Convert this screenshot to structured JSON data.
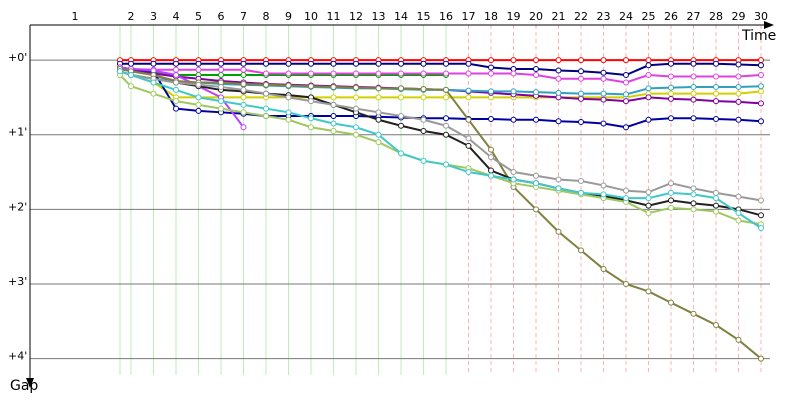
{
  "chart_data": {
    "type": "line",
    "x_label": "Time",
    "y_label": "Gap",
    "categories": [
      "1",
      "2",
      "3",
      "4",
      "5",
      "6",
      "7",
      "8",
      "9",
      "10",
      "11",
      "12",
      "13",
      "14",
      "15",
      "16",
      "17",
      "18",
      "19",
      "20",
      "21",
      "22",
      "23",
      "24",
      "25",
      "26",
      "27",
      "28",
      "29",
      "30"
    ],
    "ylim": [
      -0.47,
      4.22
    ],
    "yticks": [
      {
        "value": 0,
        "label": "+0'"
      },
      {
        "value": 1,
        "label": "+1'"
      },
      {
        "value": 2,
        "label": "+2'"
      },
      {
        "value": 3,
        "label": "+3'"
      },
      {
        "value": 4,
        "label": "+4'"
      }
    ],
    "grid": true,
    "series": [
      {
        "color": "#ff0000",
        "values": [
          0,
          0,
          0,
          0,
          0,
          0,
          0,
          0,
          0,
          0,
          0,
          0,
          0,
          0,
          0,
          0,
          0,
          0,
          0,
          0,
          0,
          0,
          0,
          0,
          0,
          0,
          0,
          0,
          0,
          0
        ]
      },
      {
        "color": "#000080",
        "values": [
          0.05,
          0.05,
          0.05,
          0.05,
          0.05,
          0.05,
          0.05,
          0.05,
          0.05,
          0.05,
          0.05,
          0.05,
          0.05,
          0.05,
          0.05,
          0.05,
          0.05,
          0.1,
          0.12,
          0.12,
          0.14,
          0.15,
          0.17,
          0.2,
          0.07,
          0.05,
          0.05,
          0.05,
          0.06,
          0.07
        ]
      },
      {
        "color": "#00a000",
        "values": [
          0.1,
          0.12,
          0.15,
          0.2,
          0.2,
          0.2,
          0.2,
          0.2,
          0.2,
          0.2,
          0.2,
          0.2,
          0.2,
          0.2,
          0.2,
          0.2,
          null,
          null,
          null,
          null,
          null,
          null,
          null,
          null,
          null,
          null,
          null,
          null,
          null,
          null
        ]
      },
      {
        "color": "#e040e0",
        "values": [
          0.1,
          0.12,
          0.13,
          0.13,
          0.13,
          0.13,
          0.13,
          0.18,
          0.18,
          0.18,
          0.18,
          0.18,
          0.18,
          0.18,
          0.18,
          0.18,
          0.18,
          0.18,
          0.18,
          0.2,
          0.25,
          0.25,
          0.25,
          0.3,
          0.2,
          0.22,
          0.22,
          0.22,
          0.22,
          0.2
        ]
      },
      {
        "color": "#d0d000",
        "values": [
          0.15,
          0.2,
          0.3,
          0.5,
          0.5,
          0.5,
          0.5,
          0.5,
          0.5,
          0.5,
          0.5,
          0.5,
          0.5,
          0.5,
          0.5,
          0.5,
          0.5,
          0.5,
          0.5,
          0.5,
          0.5,
          0.5,
          0.5,
          0.5,
          0.45,
          0.45,
          0.45,
          0.45,
          0.45,
          0.42
        ]
      },
      {
        "color": "#8000a0",
        "values": [
          0.12,
          0.14,
          0.18,
          0.22,
          0.25,
          0.28,
          0.3,
          0.32,
          0.33,
          0.34,
          0.35,
          0.36,
          0.37,
          0.38,
          0.39,
          0.4,
          0.42,
          0.44,
          0.46,
          0.48,
          0.5,
          0.52,
          0.53,
          0.55,
          0.5,
          0.52,
          0.53,
          0.55,
          0.56,
          0.58
        ]
      },
      {
        "color": "#30a0c0",
        "values": [
          0.12,
          0.15,
          0.2,
          0.3,
          0.3,
          0.32,
          0.33,
          0.34,
          0.35,
          0.36,
          0.37,
          0.38,
          0.38,
          0.39,
          0.4,
          0.4,
          0.41,
          0.42,
          0.42,
          0.43,
          0.44,
          0.45,
          0.45,
          0.46,
          0.38,
          0.37,
          0.36,
          0.36,
          0.36,
          0.35
        ]
      },
      {
        "color": "#0000a0",
        "values": [
          0.1,
          0.12,
          0.15,
          0.65,
          0.68,
          0.7,
          0.72,
          0.75,
          0.75,
          0.75,
          0.75,
          0.75,
          0.76,
          0.77,
          0.78,
          0.78,
          0.79,
          0.79,
          0.8,
          0.8,
          0.82,
          0.83,
          0.85,
          0.9,
          0.8,
          0.78,
          0.78,
          0.79,
          0.8,
          0.82
        ]
      },
      {
        "color": "#c040ff",
        "values": [
          0.1,
          0.12,
          0.14,
          0.2,
          0.35,
          0.5,
          0.9,
          null,
          null,
          null,
          null,
          null,
          null,
          null,
          null,
          null,
          null,
          null,
          null,
          null,
          null,
          null,
          null,
          null,
          null,
          null,
          null,
          null,
          null,
          null
        ]
      },
      {
        "color": "#808040",
        "values": [
          0.12,
          0.15,
          0.2,
          0.28,
          0.3,
          0.3,
          0.32,
          0.33,
          0.34,
          0.35,
          0.36,
          0.37,
          0.38,
          0.38,
          0.39,
          0.4,
          0.8,
          1.2,
          1.7,
          2.0,
          2.3,
          2.55,
          2.8,
          3.0,
          3.1,
          3.25,
          3.4,
          3.55,
          3.75,
          4.0
        ]
      },
      {
        "color": "#202020",
        "values": [
          0.15,
          0.2,
          0.25,
          0.3,
          0.35,
          0.4,
          0.42,
          0.45,
          0.47,
          0.5,
          0.6,
          0.7,
          0.8,
          0.88,
          0.95,
          1.0,
          1.15,
          1.48,
          1.6,
          1.65,
          1.72,
          1.78,
          1.82,
          1.88,
          1.95,
          1.88,
          1.92,
          1.95,
          2.0,
          2.08
        ]
      },
      {
        "color": "#999999",
        "values": [
          0.15,
          0.2,
          0.25,
          0.3,
          0.33,
          0.36,
          0.4,
          0.45,
          0.5,
          0.55,
          0.6,
          0.65,
          0.7,
          0.75,
          0.8,
          0.88,
          1.05,
          1.3,
          1.5,
          1.55,
          1.6,
          1.62,
          1.68,
          1.75,
          1.77,
          1.65,
          1.72,
          1.78,
          1.83,
          1.88
        ]
      },
      {
        "color": "#a0c860",
        "values": [
          0.2,
          0.35,
          0.45,
          0.55,
          0.6,
          0.65,
          0.7,
          0.75,
          0.8,
          0.9,
          0.95,
          1.0,
          1.1,
          1.25,
          1.35,
          1.4,
          1.45,
          1.55,
          1.65,
          1.7,
          1.75,
          1.8,
          1.85,
          1.9,
          2.05,
          1.98,
          2.0,
          2.03,
          2.15,
          2.2
        ]
      },
      {
        "color": "#40c8c8",
        "values": [
          0.15,
          0.2,
          0.3,
          0.4,
          0.5,
          0.55,
          0.6,
          0.65,
          0.7,
          0.78,
          0.85,
          0.9,
          1.0,
          1.25,
          1.35,
          1.4,
          1.5,
          1.55,
          1.6,
          1.65,
          1.72,
          1.78,
          1.8,
          1.85,
          1.85,
          1.78,
          1.8,
          1.85,
          2.05,
          2.25
        ]
      }
    ]
  }
}
